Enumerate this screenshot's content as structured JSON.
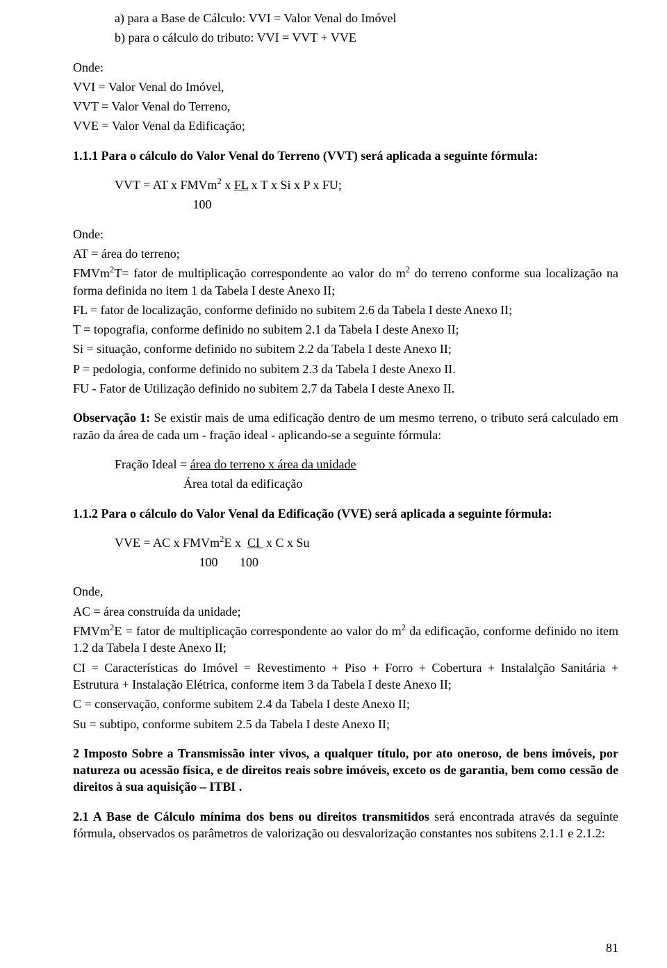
{
  "intro": {
    "a": "a) para a Base de Cálculo: VVI = Valor Venal do Imóvel",
    "b": "b) para o cálculo do tributo: VVI = VVT + VVE"
  },
  "onde1": {
    "onde": "Onde:",
    "l1": "VVI = Valor Venal do Imóvel,",
    "l2": "VVT = Valor Venal do Terreno,",
    "l3": "VVE = Valor Venal da Edificação;"
  },
  "s111": {
    "title": "1.1.1 Para o cálculo do Valor Venal do Terreno (VVT) será aplicada a seguinte fórmula:",
    "f1_a": "VVT = AT x FMVm",
    "f1_b": " x ",
    "f1_fl": "FL",
    "f1_c": " x T x Si x P x FU;",
    "f2": "                         100",
    "onde": "Onde:",
    "at": "AT = área do terreno;",
    "fm_a": "FMVm",
    "fm_b": "T= fator de multiplicação correspondente ao valor do m",
    "fm_c": " do terreno conforme sua localização na forma definida no item 1 da Tabela I deste Anexo II;",
    "fl": "FL = fator de localização, conforme definido no subitem 2.6 da Tabela I deste Anexo II;",
    "t": "T = topografia, conforme definido no subitem 2.1 da Tabela I deste Anexo II;",
    "si": "Si = situação, conforme definido no subitem 2.2 da Tabela I deste Anexo II;",
    "p": "P = pedologia, conforme definido no subitem 2.3 da Tabela I deste Anexo II.",
    "fu": "FU - Fator de Utilização definido no subitem 2.7 da Tabela I deste Anexo II."
  },
  "obs1": {
    "label": "Observação 1:",
    "text": " Se existir mais de uma edificação dentro de um mesmo terreno, o tributo será calculado em razão da área de cada um - fração ideal - aplicando-se a seguinte fórmula:",
    "f1_a": "Fração Ideal = ",
    "f1_u": "área do terreno x área da unidade",
    "f2": "                      Área total da edificação"
  },
  "s112": {
    "title": "1.1.2 Para o cálculo do Valor Venal da Edificação (VVE) será aplicada a seguinte fórmula:",
    "f1_a": "VVE = AC x FMVm",
    "f1_b": "E x  ",
    "f1_ci": "CI ",
    "f1_c": " x C x Su",
    "f2": "                           100       100",
    "onde": "Onde,",
    "ac": "AC = área construída da unidade;",
    "fm_a": "FMVm",
    "fm_b": "E = fator de multiplicação correspondente ao valor do m",
    "fm_c": " da edificação, conforme definido no item 1.2 da Tabela I deste Anexo II;",
    "ci": "CI = Características do Imóvel = Revestimento + Piso + Forro + Cobertura + Instalalção Sanitária + Estrutura + Instalação Elétrica, conforme item 3 da Tabela I deste Anexo II;",
    "c": "C = conservação, conforme subitem 2.4 da Tabela I deste Anexo II;",
    "su": "Su = subtipo, conforme subitem 2.5 da Tabela I deste Anexo II;"
  },
  "s2": {
    "title": "2  Imposto Sobre a Transmissão inter vivos, a qualquer título, por ato oneroso, de bens imóveis, por natureza ou acessão física, e de direitos reais sobre imóveis, exceto os de garantia, bem como cessão de direitos à sua aquisição – ITBI ."
  },
  "s21": {
    "label": "2.1 A Base de Cálculo mínima dos bens ou direitos transmitidos",
    "text": " será encontrada através da seguinte fórmula, observados os parâmetros de valorização ou desvalorização constantes nos subitens 2.1.1 e 2.1.2:"
  },
  "pagenum": "81"
}
